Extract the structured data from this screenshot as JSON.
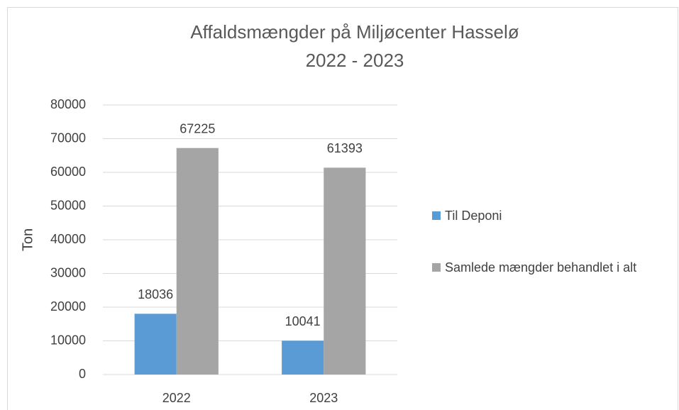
{
  "chart_data": {
    "type": "bar",
    "title": "Affaldsmængder på Miljøcenter Hasselø",
    "subtitle": "2022 - 2023",
    "y_label": "Ton",
    "categories": [
      "2022",
      "2023"
    ],
    "series": [
      {
        "name": "Til Deponi",
        "color": "#5b9bd5",
        "values": [
          18036,
          10041
        ]
      },
      {
        "name": "Samlede mængder behandlet i alt",
        "color": "#a5a5a5",
        "values": [
          67225,
          61393
        ]
      }
    ],
    "ylim": [
      0,
      80000
    ],
    "yticks": [
      0,
      10000,
      20000,
      30000,
      40000,
      50000,
      60000,
      70000,
      80000
    ],
    "grid": true,
    "legend": "right"
  }
}
